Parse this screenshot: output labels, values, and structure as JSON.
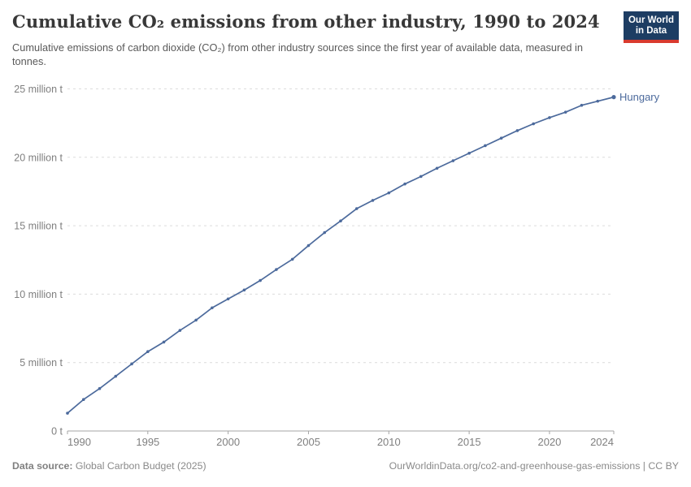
{
  "header": {
    "title": "Cumulative CO₂ emissions from other industry, 1990 to 2024",
    "subtitle": "Cumulative emissions of carbon dioxide (CO₂) from other industry sources since the first year of available data, measured in tonnes.",
    "logo": {
      "line1": "Our World",
      "line2": "in Data",
      "bg_color": "#1d3d63",
      "accent_color": "#d93a2e"
    }
  },
  "chart_data": {
    "type": "line",
    "title": "Cumulative CO₂ emissions from other industry, 1990 to 2024",
    "unit": "million tonnes",
    "xlim": [
      1990,
      2024
    ],
    "ylim": [
      0,
      25
    ],
    "grid": "horizontal-dashed",
    "legend_position": "end-of-line-label",
    "x_ticks": [
      1990,
      1995,
      2000,
      2005,
      2010,
      2015,
      2020,
      2024
    ],
    "y_ticks": [
      {
        "value": 0,
        "label": "0 t"
      },
      {
        "value": 5,
        "label": "5 million t"
      },
      {
        "value": 10,
        "label": "10 million t"
      },
      {
        "value": 15,
        "label": "15 million t"
      },
      {
        "value": 20,
        "label": "20 million t"
      },
      {
        "value": 25,
        "label": "25 million t"
      }
    ],
    "series": [
      {
        "name": "Hungary",
        "color": "#4c6a9c",
        "x": [
          1990,
          1991,
          1992,
          1993,
          1994,
          1995,
          1996,
          1997,
          1998,
          1999,
          2000,
          2001,
          2002,
          2003,
          2004,
          2005,
          2006,
          2007,
          2008,
          2009,
          2010,
          2011,
          2012,
          2013,
          2014,
          2015,
          2016,
          2017,
          2018,
          2019,
          2020,
          2021,
          2022,
          2023,
          2024
        ],
        "values": [
          1.3,
          2.3,
          3.1,
          4.0,
          4.9,
          5.8,
          6.5,
          7.35,
          8.1,
          9.0,
          9.65,
          10.3,
          11.0,
          11.8,
          12.55,
          13.55,
          14.5,
          15.35,
          16.25,
          16.85,
          17.4,
          18.05,
          18.6,
          19.2,
          19.75,
          20.3,
          20.85,
          21.4,
          21.95,
          22.45,
          22.9,
          23.3,
          23.8,
          24.1,
          24.4
        ]
      }
    ]
  },
  "footer": {
    "source_label": "Data source:",
    "source_value": " Global Carbon Budget (2025)",
    "credit": "OurWorldinData.org/co2-and-greenhouse-gas-emissions | CC BY"
  },
  "colors": {
    "title": "#383838",
    "subtitle": "#5a5a5a",
    "axis_label": "#7f7f7f",
    "gridline": "#dcdcdc",
    "axis_line": "#a5a5a5",
    "series": "#4c6a9c"
  }
}
